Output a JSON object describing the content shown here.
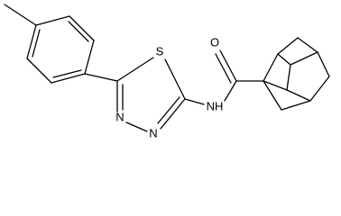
{
  "atoms": {
    "sulfur": "S",
    "nitrogen_a": "N",
    "nitrogen_b": "N",
    "amide_nitrogen": "NH",
    "oxygen": "O"
  }
}
